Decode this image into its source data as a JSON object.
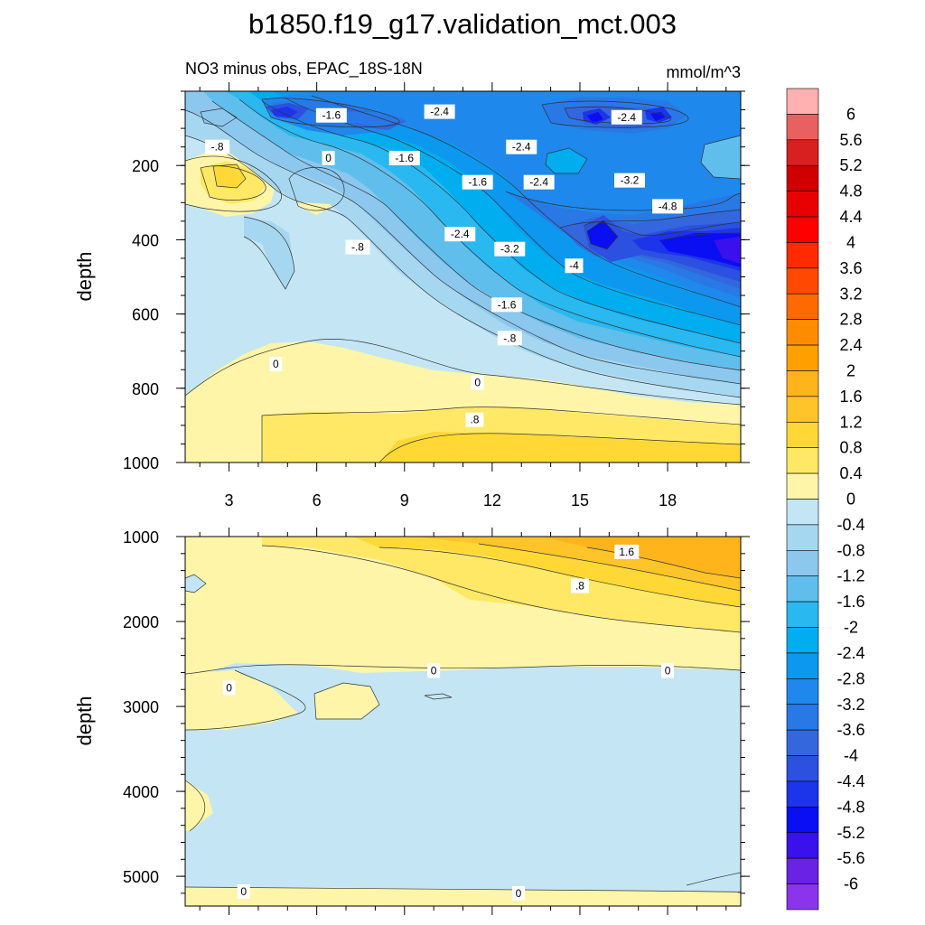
{
  "chart_data": [
    {
      "type": "heatmap",
      "title": "b1850.f19_g17.validation_mct.003",
      "subtitle_left": "NO3 minus obs, EPAC_18S-18N",
      "subtitle_right": "mmol/m^3",
      "ylabel": "depth",
      "xlim": [
        1.5,
        20.5
      ],
      "ylim": [
        1000,
        0
      ],
      "xticks": [
        "3",
        "6",
        "9",
        "12",
        "15",
        "18"
      ],
      "yticks": [
        "200",
        "400",
        "600",
        "800",
        "1000"
      ],
      "contour_labels": [
        {
          "x": 6.5,
          "y": 65,
          "v": "-1.6"
        },
        {
          "x": 10.2,
          "y": 55,
          "v": "-2.4"
        },
        {
          "x": 16.6,
          "y": 70,
          "v": "-2.4"
        },
        {
          "x": 2.6,
          "y": 150,
          "v": "-.8"
        },
        {
          "x": 6.4,
          "y": 180,
          "v": "0"
        },
        {
          "x": 9.0,
          "y": 180,
          "v": "-1.6"
        },
        {
          "x": 13.0,
          "y": 150,
          "v": "-2.4"
        },
        {
          "x": 11.5,
          "y": 245,
          "v": "-1.6"
        },
        {
          "x": 13.6,
          "y": 245,
          "v": "-2.4"
        },
        {
          "x": 16.7,
          "y": 240,
          "v": "-3.2"
        },
        {
          "x": 18.0,
          "y": 310,
          "v": "-4.8"
        },
        {
          "x": 10.9,
          "y": 385,
          "v": "-2.4"
        },
        {
          "x": 12.6,
          "y": 425,
          "v": "-3.2"
        },
        {
          "x": 7.4,
          "y": 420,
          "v": "-.8"
        },
        {
          "x": 14.8,
          "y": 470,
          "v": "-4"
        },
        {
          "x": 12.5,
          "y": 575,
          "v": "-1.6"
        },
        {
          "x": 12.6,
          "y": 665,
          "v": "-.8"
        },
        {
          "x": 4.6,
          "y": 735,
          "v": "0"
        },
        {
          "x": 11.5,
          "y": 785,
          "v": "0"
        },
        {
          "x": 11.4,
          "y": 885,
          "v": ".8"
        }
      ]
    },
    {
      "type": "heatmap",
      "ylabel": "depth",
      "xlim": [
        1.5,
        20.5
      ],
      "ylim": [
        5350,
        1000
      ],
      "yticks": [
        "1000",
        "2000",
        "3000",
        "4000",
        "5000"
      ],
      "contour_labels": [
        {
          "x": 16.6,
          "y": 1180,
          "v": "1.6"
        },
        {
          "x": 15.0,
          "y": 1580,
          "v": ".8"
        },
        {
          "x": 10.0,
          "y": 2580,
          "v": "0"
        },
        {
          "x": 18.0,
          "y": 2580,
          "v": "0"
        },
        {
          "x": 3.0,
          "y": 2780,
          "v": "0"
        },
        {
          "x": 3.5,
          "y": 5180,
          "v": "0"
        },
        {
          "x": 12.9,
          "y": 5200,
          "v": "0"
        }
      ]
    }
  ],
  "colorbar": {
    "labels": [
      "6",
      "5.6",
      "5.2",
      "4.8",
      "4.4",
      "4",
      "3.6",
      "3.2",
      "2.8",
      "2.4",
      "2",
      "1.6",
      "1.2",
      "0.8",
      "0.4",
      "0",
      "-0.4",
      "-0.8",
      "-1.2",
      "-1.6",
      "-2",
      "-2.4",
      "-2.8",
      "-3.2",
      "-3.6",
      "-4",
      "-4.4",
      "-4.8",
      "-5.2",
      "-5.6",
      "-6"
    ],
    "colors": [
      "#ffb0b0",
      "#e86060",
      "#d82020",
      "#d00000",
      "#e80000",
      "#ff0000",
      "#ff2a00",
      "#ff4800",
      "#ff6a00",
      "#ff8c00",
      "#ffa000",
      "#ffb41c",
      "#ffc42a",
      "#ffd836",
      "#ffe866",
      "#fff5a8",
      "#c4e6f4",
      "#a6d7f0",
      "#8cc7ee",
      "#5fbeec",
      "#29b8f0",
      "#00adef",
      "#0c98ef",
      "#1e88ec",
      "#2878e6",
      "#3466de",
      "#2c50e0",
      "#1c34ea",
      "#0a0ef2",
      "#3a10ec",
      "#6a22e4",
      "#8a34ec"
    ]
  }
}
